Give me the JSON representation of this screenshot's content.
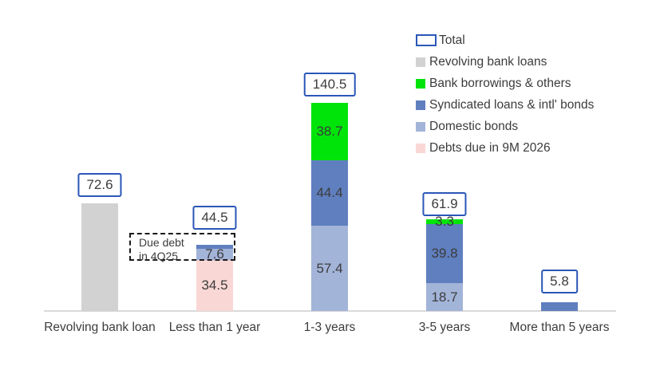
{
  "chart_data": {
    "type": "bar",
    "stacked": true,
    "title": "",
    "xlabel": "",
    "ylabel": "",
    "grid": false,
    "legend_position": "top-right",
    "categories": [
      "Revolving bank loan",
      "Less than 1 year",
      "1-3 years",
      "3-5 years",
      "More than 5 years"
    ],
    "series": [
      {
        "name": "Revolving bank loans",
        "values": [
          72.6,
          0,
          0,
          0,
          0
        ]
      },
      {
        "name": "Debts due in 9M 2026",
        "values": [
          0,
          34.5,
          0,
          0,
          0
        ]
      },
      {
        "name": "Domestic bonds",
        "values": [
          0,
          7.6,
          57.4,
          18.7,
          0
        ]
      },
      {
        "name": "Syndicated loans & intl' bonds",
        "values": [
          0,
          2.4,
          44.4,
          39.8,
          5.8
        ]
      },
      {
        "name": "Bank borrowings & others",
        "values": [
          0,
          0,
          38.7,
          3.3,
          0
        ]
      }
    ],
    "totals": [
      72.6,
      44.5,
      140.5,
      61.9,
      5.8
    ],
    "annotation": "Due debt in 4Q25"
  },
  "legend": {
    "items": [
      {
        "key": "total",
        "label": "Total"
      },
      {
        "key": "revolving",
        "label": "Revolving bank loans"
      },
      {
        "key": "bank_borrowings",
        "label": "Bank borrowings & others"
      },
      {
        "key": "syndicated",
        "label": "Syndicated loans & intl' bonds"
      },
      {
        "key": "domestic",
        "label": "Domestic bonds"
      },
      {
        "key": "debts_9m",
        "label": "Debts due in 9M 2026"
      }
    ]
  },
  "colors": {
    "total_border": "#2a57b8",
    "revolving": "#d2d2d2",
    "bank_borrowings": "#00e40a",
    "syndicated": "#5f7fbf",
    "domestic": "#a3b4d9",
    "debts_9m": "#f9d7d5",
    "axis_line": "#d9d9d9",
    "text": "#3c3c3c"
  },
  "bars": [
    {
      "category": "Revolving bank loan",
      "total_label": "72.6",
      "segments": [
        {
          "key": "revolving",
          "value": 72.6,
          "label": ""
        }
      ]
    },
    {
      "category": "Less than 1 year",
      "total_label": "44.5",
      "segments": [
        {
          "key": "debts_9m",
          "value": 34.5,
          "label": "34.5"
        },
        {
          "key": "domestic",
          "value": 7.6,
          "label": "7.6"
        },
        {
          "key": "syndicated",
          "value": 2.4,
          "label": ""
        }
      ]
    },
    {
      "category": "1-3 years",
      "total_label": "140.5",
      "segments": [
        {
          "key": "domestic",
          "value": 57.4,
          "label": "57.4"
        },
        {
          "key": "syndicated",
          "value": 44.4,
          "label": "44.4"
        },
        {
          "key": "bank_borrowings",
          "value": 38.7,
          "label": "38.7"
        }
      ]
    },
    {
      "category": "3-5 years",
      "total_label": "61.9",
      "segments": [
        {
          "key": "domestic",
          "value": 18.7,
          "label": "18.7"
        },
        {
          "key": "syndicated",
          "value": 39.8,
          "label": "39.8"
        },
        {
          "key": "bank_borrowings",
          "value": 3.3,
          "label": "3.3"
        }
      ]
    },
    {
      "category": "More than 5 years",
      "total_label": "5.8",
      "segments": [
        {
          "key": "syndicated",
          "value": 5.8,
          "label": ""
        }
      ]
    }
  ],
  "annotation": {
    "line1": "Due debt",
    "line2": "in 4Q25"
  }
}
